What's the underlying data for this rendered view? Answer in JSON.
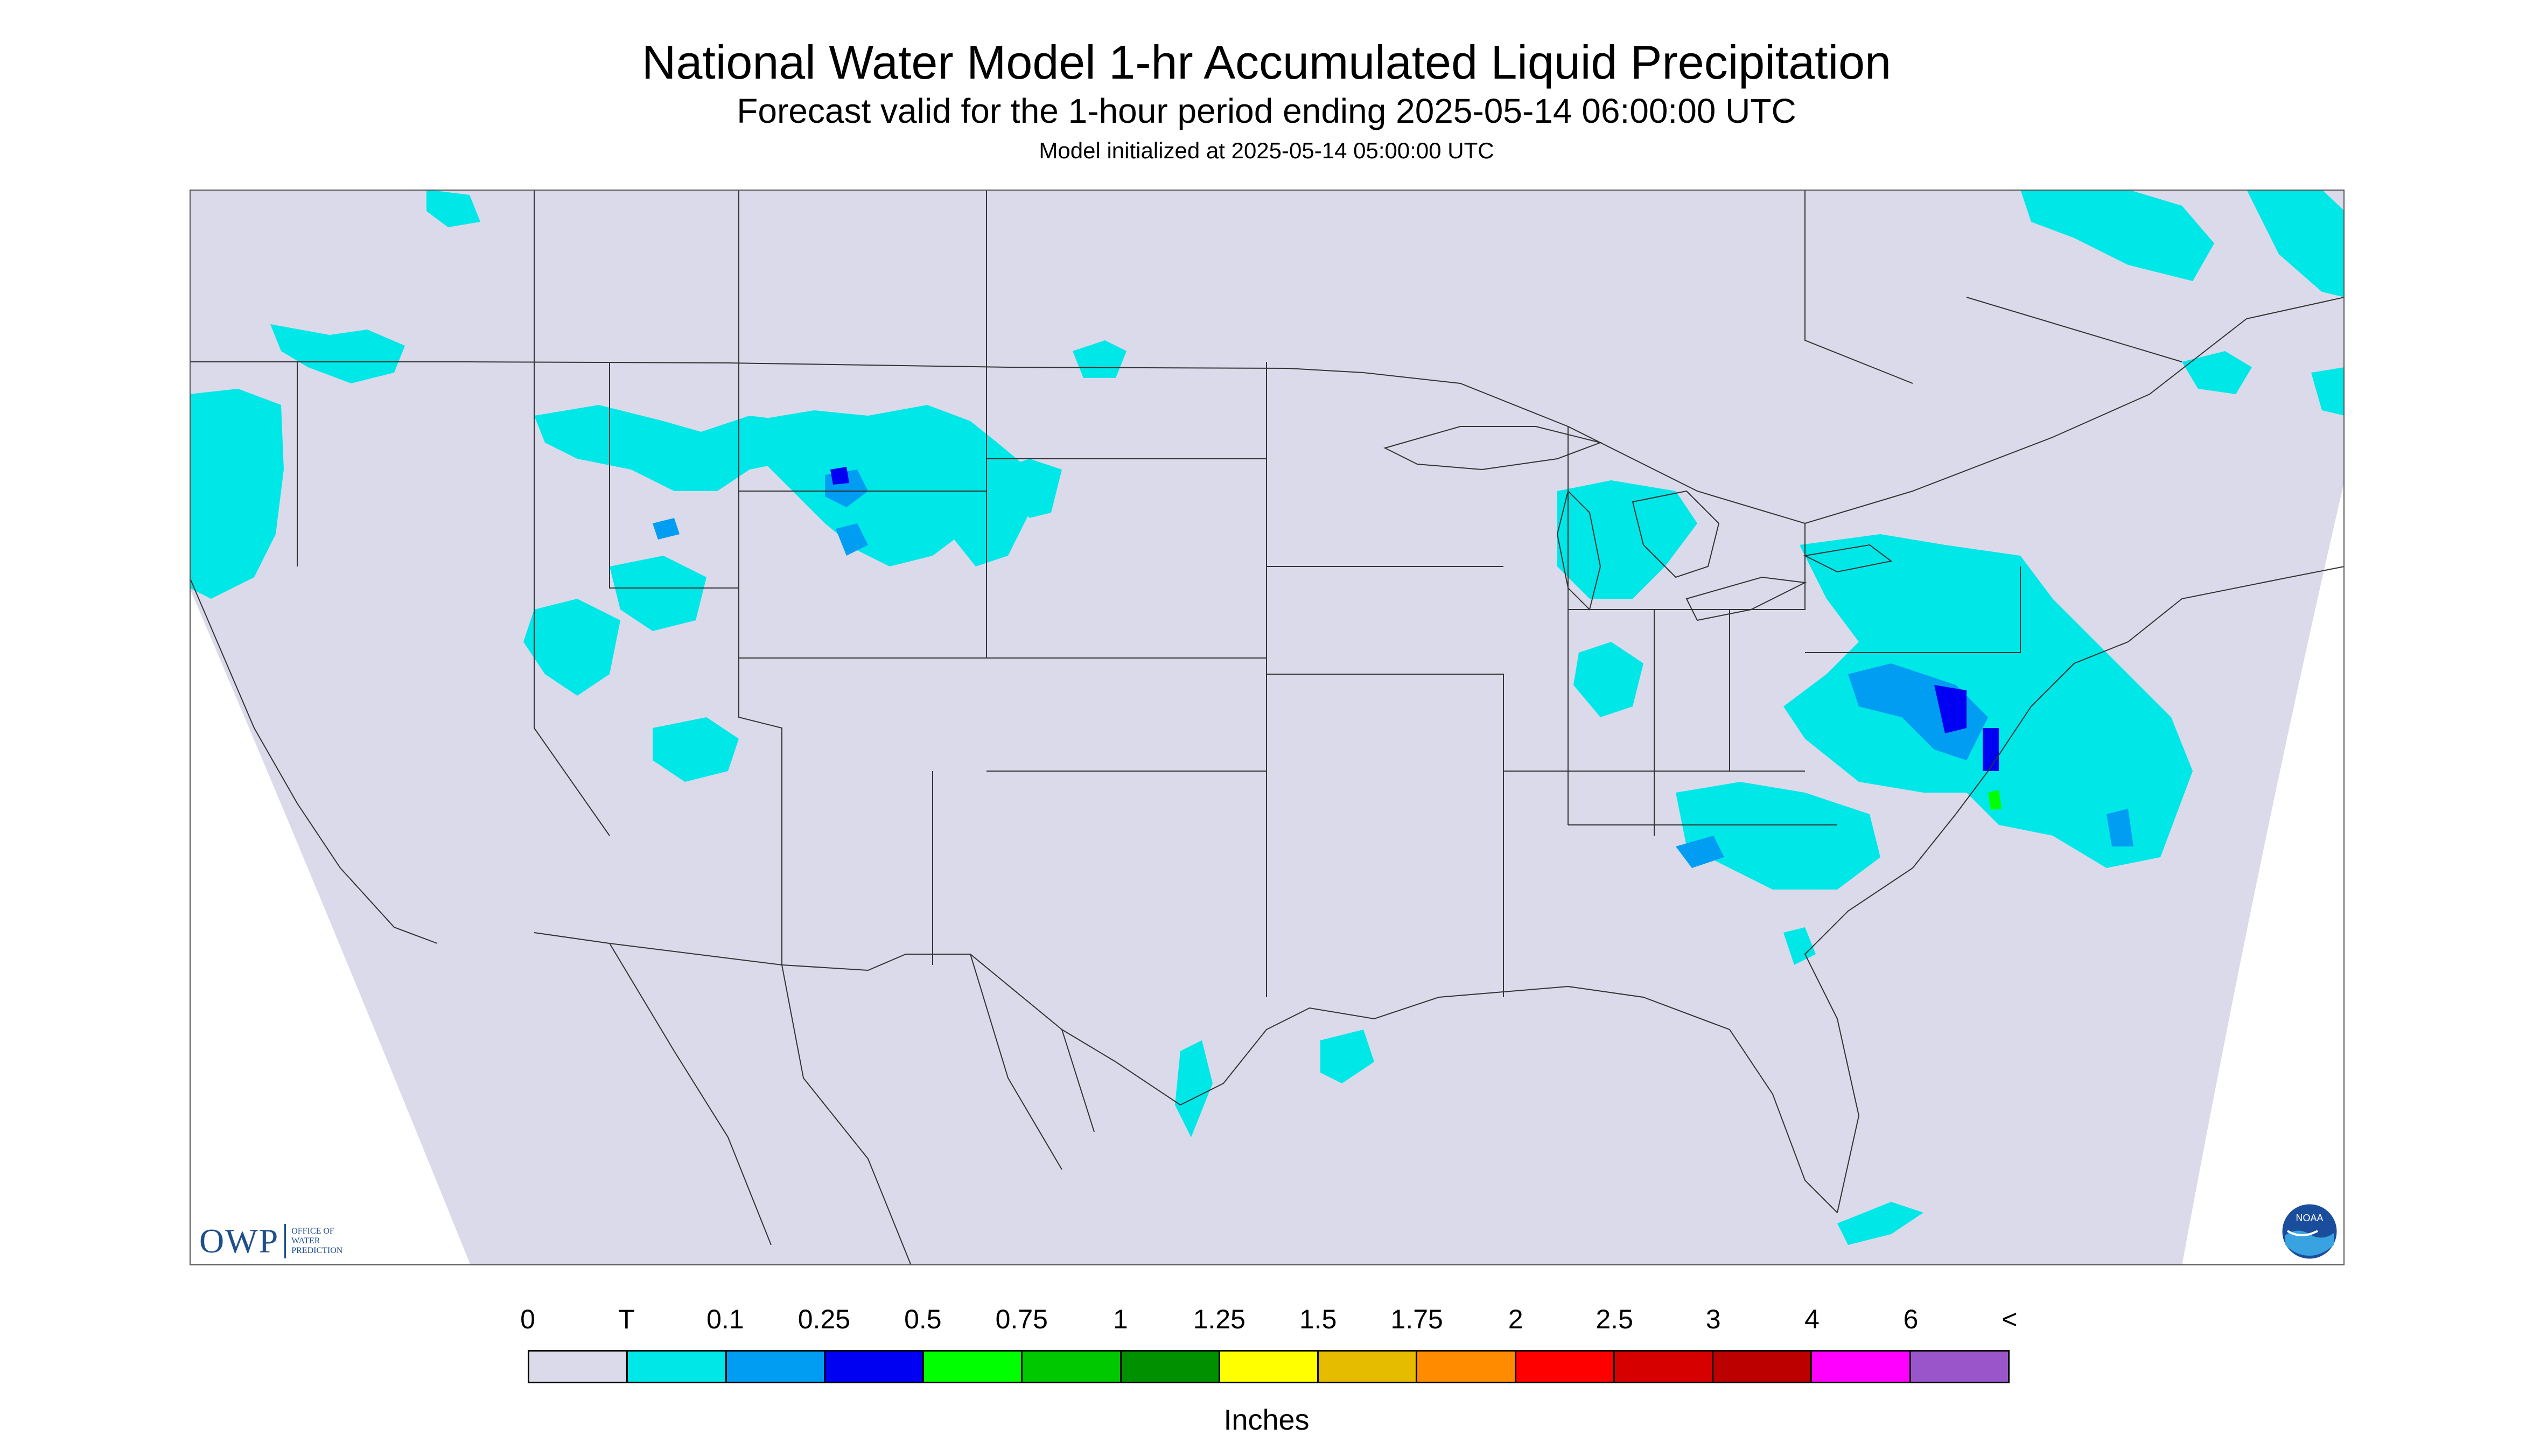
{
  "title": "National Water Model 1-hr Accumulated Liquid Precipitation",
  "subtitle": "Forecast valid for the 1-hour period ending 2025-05-14 06:00:00 UTC",
  "model_init": "Model initialized at 2025-05-14 05:00:00 UTC",
  "colors": {
    "background": "#dadaeb",
    "trace": "#00e7e7",
    "light_blue": "#009df2",
    "blue": "#0000f2",
    "border": "#000000"
  },
  "logos": {
    "owp": {
      "text": "OWP",
      "subtext": [
        "OFFICE OF",
        "WATER",
        "PREDICTION"
      ]
    },
    "noaa": {
      "text": "NOAA"
    }
  },
  "legend": {
    "unit_label": "Inches",
    "labels": [
      "0",
      "T",
      "0.1",
      "0.25",
      "0.5",
      "0.75",
      "1",
      "1.25",
      "1.5",
      "1.75",
      "2",
      "2.5",
      "3",
      "4",
      "6",
      "<"
    ],
    "colors": [
      "#dadaeb",
      "#00e7e7",
      "#009df2",
      "#0000f2",
      "#00ff00",
      "#00c800",
      "#009000",
      "#ffff00",
      "#e6bc00",
      "#ff8c00",
      "#ff0000",
      "#d60000",
      "#bc0000",
      "#ff00ff",
      "#9955c9"
    ]
  }
}
